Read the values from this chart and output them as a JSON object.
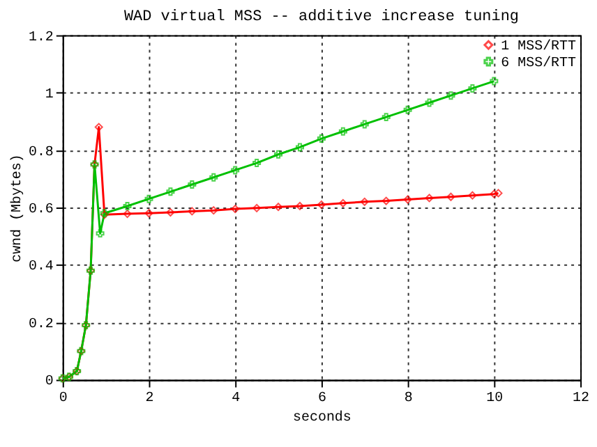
{
  "chart_data": {
    "type": "line",
    "title": "WAD virtual MSS --  additive increase tuning",
    "xlabel": "seconds",
    "ylabel": "cwnd (Mbytes)",
    "xlim": [
      0,
      12
    ],
    "xticks": [
      0,
      2,
      4,
      6,
      8,
      10,
      12
    ],
    "ylim": [
      0,
      1.2
    ],
    "yticks": [
      0,
      0.2,
      0.4,
      0.6,
      0.8,
      1,
      1.2
    ],
    "grid": true,
    "legend": "top right",
    "line_style": "solid",
    "series": [
      {
        "name": "1 MSS/RTT",
        "color": "#ff0000",
        "marker": "diamond",
        "x": [
          0,
          0.15,
          0.33,
          0.43,
          0.54,
          0.65,
          0.74,
          0.84,
          0.97,
          1.5,
          2,
          2.5,
          3,
          3.5,
          4,
          4.5,
          5,
          5.5,
          6,
          6.5,
          7,
          7.5,
          8,
          8.5,
          9,
          9.5,
          10,
          10.1
        ],
        "values": [
          0.005,
          0.01,
          0.03,
          0.1,
          0.19,
          0.38,
          0.75,
          0.88,
          0.575,
          0.578,
          0.58,
          0.583,
          0.587,
          0.59,
          0.595,
          0.598,
          0.602,
          0.605,
          0.61,
          0.615,
          0.62,
          0.623,
          0.628,
          0.633,
          0.637,
          0.642,
          0.647,
          0.65
        ]
      },
      {
        "name": "6 MSS/RTT",
        "color": "#00c000",
        "marker": "cross",
        "x": [
          0,
          0.15,
          0.33,
          0.43,
          0.54,
          0.65,
          0.74,
          0.87,
          0.97,
          1.5,
          2,
          2.5,
          3,
          3.5,
          4,
          4.5,
          5,
          5.5,
          6,
          6.5,
          7,
          7.5,
          8,
          8.5,
          9,
          9.5,
          10
        ],
        "values": [
          0.005,
          0.01,
          0.03,
          0.1,
          0.19,
          0.38,
          0.75,
          0.51,
          0.58,
          0.605,
          0.63,
          0.655,
          0.68,
          0.705,
          0.73,
          0.755,
          0.785,
          0.81,
          0.84,
          0.865,
          0.89,
          0.915,
          0.94,
          0.965,
          0.99,
          1.015,
          1.04
        ]
      }
    ]
  }
}
